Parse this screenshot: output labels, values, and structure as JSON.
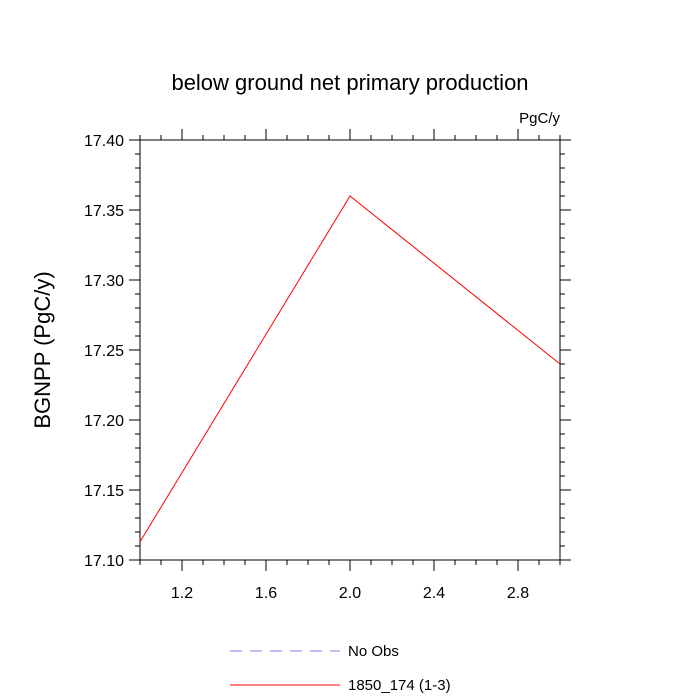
{
  "chart_data": {
    "type": "line",
    "title": "below ground net primary production",
    "units_label": "PgC/y",
    "xlabel": "",
    "ylabel": "BGNPP  (PgC/y)",
    "xlim": [
      1.0,
      3.0
    ],
    "ylim": [
      17.1,
      17.4
    ],
    "x_ticks": [
      1.2,
      1.6,
      2.0,
      2.4,
      2.8
    ],
    "x_tick_labels": [
      "1.2",
      "1.6",
      "2.0",
      "2.4",
      "2.8"
    ],
    "y_ticks": [
      17.1,
      17.15,
      17.2,
      17.25,
      17.3,
      17.35,
      17.4
    ],
    "y_tick_labels": [
      "17.10",
      "17.15",
      "17.20",
      "17.25",
      "17.30",
      "17.35",
      "17.40"
    ],
    "grid": false,
    "legend_position": "bottom",
    "series": [
      {
        "name": "1850_174 (1-3)",
        "color": "#ff0000",
        "style": "solid",
        "x": [
          1.0,
          2.0,
          3.0
        ],
        "y": [
          17.113,
          17.36,
          17.24
        ]
      }
    ],
    "legend": [
      {
        "name": "No Obs",
        "color": "#8080e0",
        "style": "dashed"
      },
      {
        "name": "1850_174 (1-3)",
        "color": "#ff0000",
        "style": "solid"
      }
    ]
  }
}
